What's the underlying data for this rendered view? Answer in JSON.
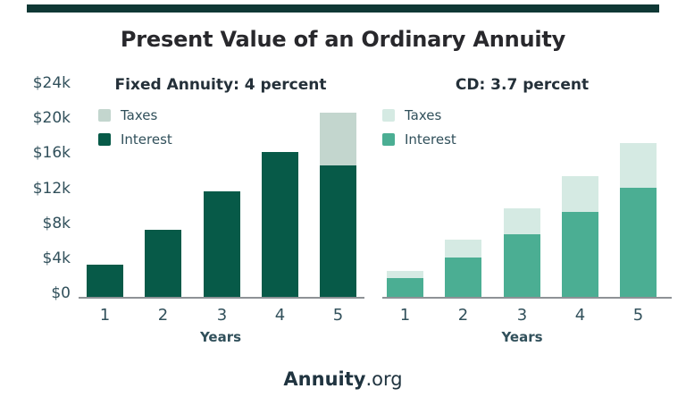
{
  "header": {
    "title": "Present Value of an Ordinary Annuity"
  },
  "footer": {
    "brand_bold": "Annuity",
    "brand_suffix": ".org"
  },
  "colors": {
    "topbar": "#0F3835",
    "title_text": "#28282C",
    "subtitle_text": "#243039",
    "axis_text": "#31505B",
    "axis_line": "#8E9296",
    "footer_text": "#203440"
  },
  "y_axis": {
    "ticks": [
      "$24k",
      "$20k",
      "$16k",
      "$12k",
      "$8k",
      "$4k",
      "$0"
    ]
  },
  "chart_data": [
    {
      "type": "bar",
      "stacked": true,
      "title": "Fixed Annuity: 4 percent",
      "xlabel": "Years",
      "categories": [
        "1",
        "2",
        "3",
        "4",
        "5"
      ],
      "unit": "USD thousands",
      "ylim": [
        0,
        24
      ],
      "grid": false,
      "legend_position": "top-left",
      "legend_order": [
        "Taxes",
        "Interest"
      ],
      "series": [
        {
          "name": "Interest",
          "color": "#075A48",
          "values": [
            3.7,
            7.6,
            12,
            16.5,
            15
          ]
        },
        {
          "name": "Taxes",
          "color": "#C3D6CE",
          "values": [
            0,
            0,
            0,
            0,
            6
          ]
        }
      ]
    },
    {
      "type": "bar",
      "stacked": true,
      "title": "CD: 3.7 percent",
      "xlabel": "Years",
      "categories": [
        "1",
        "2",
        "3",
        "4",
        "5"
      ],
      "unit": "USD thousands",
      "ylim": [
        0,
        24
      ],
      "grid": false,
      "legend_position": "top-left",
      "legend_order": [
        "Taxes",
        "Interest"
      ],
      "series": [
        {
          "name": "Interest",
          "color": "#4BAE93",
          "values": [
            2.1,
            4.5,
            7.1,
            9.7,
            12.4
          ]
        },
        {
          "name": "Taxes",
          "color": "#D5EAE3",
          "values": [
            0.8,
            2.0,
            3.0,
            4.0,
            5.1
          ]
        }
      ]
    }
  ]
}
